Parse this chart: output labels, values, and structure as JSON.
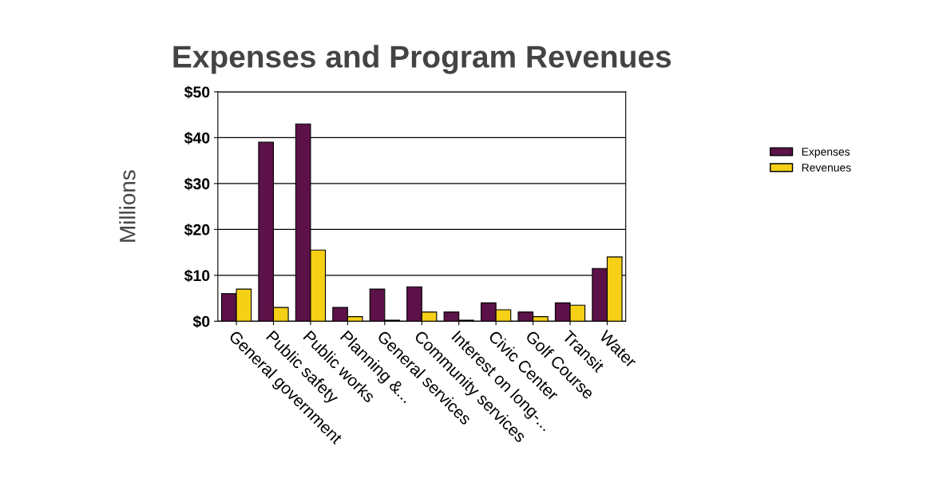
{
  "chart_data": {
    "type": "bar",
    "title": "Expenses and Program Revenues",
    "ylabel": "Millions",
    "categories": [
      "General government",
      "Public safety",
      "Public works",
      "Planning &...",
      "General services",
      "Community services",
      "Interest on long-...",
      "Civic Center",
      "Golf Course",
      "Transit",
      "Water"
    ],
    "series": [
      {
        "name": "Expenses",
        "color": "#5c1248",
        "values": [
          6,
          39,
          43,
          3,
          7,
          7.5,
          2,
          4,
          2,
          4,
          11.5
        ]
      },
      {
        "name": "Revenues",
        "color": "#f5d017",
        "values": [
          7,
          3,
          15.5,
          1,
          0.2,
          2,
          0.2,
          2.5,
          1,
          3.5,
          14
        ]
      }
    ],
    "ylim": [
      0,
      50
    ],
    "yticks": [
      {
        "value": 0,
        "label": "$0"
      },
      {
        "value": 10,
        "label": "$10"
      },
      {
        "value": 20,
        "label": "$20"
      },
      {
        "value": 30,
        "label": "$30"
      },
      {
        "value": 40,
        "label": "$40"
      },
      {
        "value": 50,
        "label": "$50"
      }
    ],
    "grid": "y",
    "legend": "right"
  }
}
